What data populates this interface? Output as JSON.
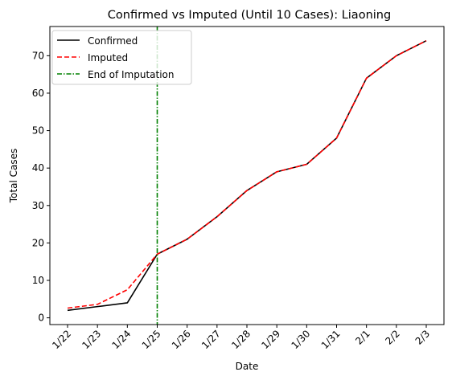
{
  "chart_data": {
    "type": "line",
    "title": "Confirmed vs Imputed (Until 10 Cases): Liaoning",
    "xlabel": "Date",
    "ylabel": "Total Cases",
    "categories": [
      "1/22",
      "1/23",
      "1/24",
      "1/25",
      "1/26",
      "1/27",
      "1/28",
      "1/29",
      "1/30",
      "1/31",
      "2/1",
      "2/2",
      "2/3"
    ],
    "ylim": [
      -1.8,
      77.8
    ],
    "yticks": [
      0,
      10,
      20,
      30,
      40,
      50,
      60,
      70
    ],
    "grid": false,
    "legend_position": "top-left",
    "series": [
      {
        "name": "Confirmed",
        "color": "#000000",
        "style": "solid",
        "values": [
          2,
          3,
          4,
          17,
          21,
          27,
          34,
          39,
          41,
          48,
          64,
          70,
          74
        ]
      },
      {
        "name": "Imputed",
        "color": "#ff0000",
        "style": "dashed",
        "values": [
          2.6,
          3.6,
          7.5,
          17,
          21,
          27,
          34,
          39,
          41,
          48,
          64,
          70,
          74
        ]
      }
    ],
    "vline": {
      "name": "End of Imputation",
      "x": "1/25",
      "color": "#008000",
      "style": "dashdot"
    }
  }
}
